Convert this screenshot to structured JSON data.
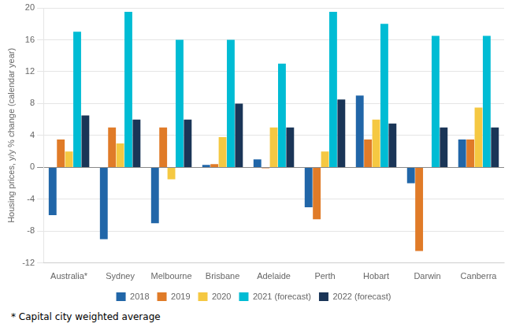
{
  "chart_data": {
    "type": "bar",
    "categories": [
      "Australia*",
      "Sydney",
      "Melbourne",
      "Brisbane",
      "Adelaide",
      "Perth",
      "Hobart",
      "Darwin",
      "Canberra"
    ],
    "series": [
      {
        "name": "2018",
        "color": "#2166a8",
        "values": [
          -6.0,
          -9.0,
          -7.0,
          0.3,
          1.0,
          -5.0,
          9.0,
          -2.0,
          3.5
        ]
      },
      {
        "name": "2019",
        "color": "#e07b28",
        "values": [
          3.5,
          5.0,
          5.0,
          0.4,
          -0.1,
          -6.5,
          3.5,
          -10.5,
          3.5
        ]
      },
      {
        "name": "2020",
        "color": "#f5c842",
        "values": [
          2.0,
          3.0,
          -1.5,
          3.8,
          5.0,
          2.0,
          6.0,
          0.0,
          7.5
        ]
      },
      {
        "name": "2021 (forecast)",
        "color": "#00bcd4",
        "values": [
          17.0,
          19.5,
          16.0,
          16.0,
          13.0,
          19.5,
          18.0,
          16.5,
          16.5
        ]
      },
      {
        "name": "2022 (forecast)",
        "color": "#1a3557",
        "values": [
          6.5,
          6.0,
          6.0,
          8.0,
          5.0,
          8.5,
          5.5,
          5.0,
          5.0
        ]
      }
    ],
    "ylabel": "Housing prices, y/y % change (calendar year)",
    "ylim": [
      -12,
      20
    ],
    "yticks": [
      -12,
      -8,
      -4,
      0,
      4,
      8,
      12,
      16,
      20
    ],
    "grid": true,
    "legend": "bottom",
    "annotations": [
      "* Capital city weighted average"
    ]
  }
}
